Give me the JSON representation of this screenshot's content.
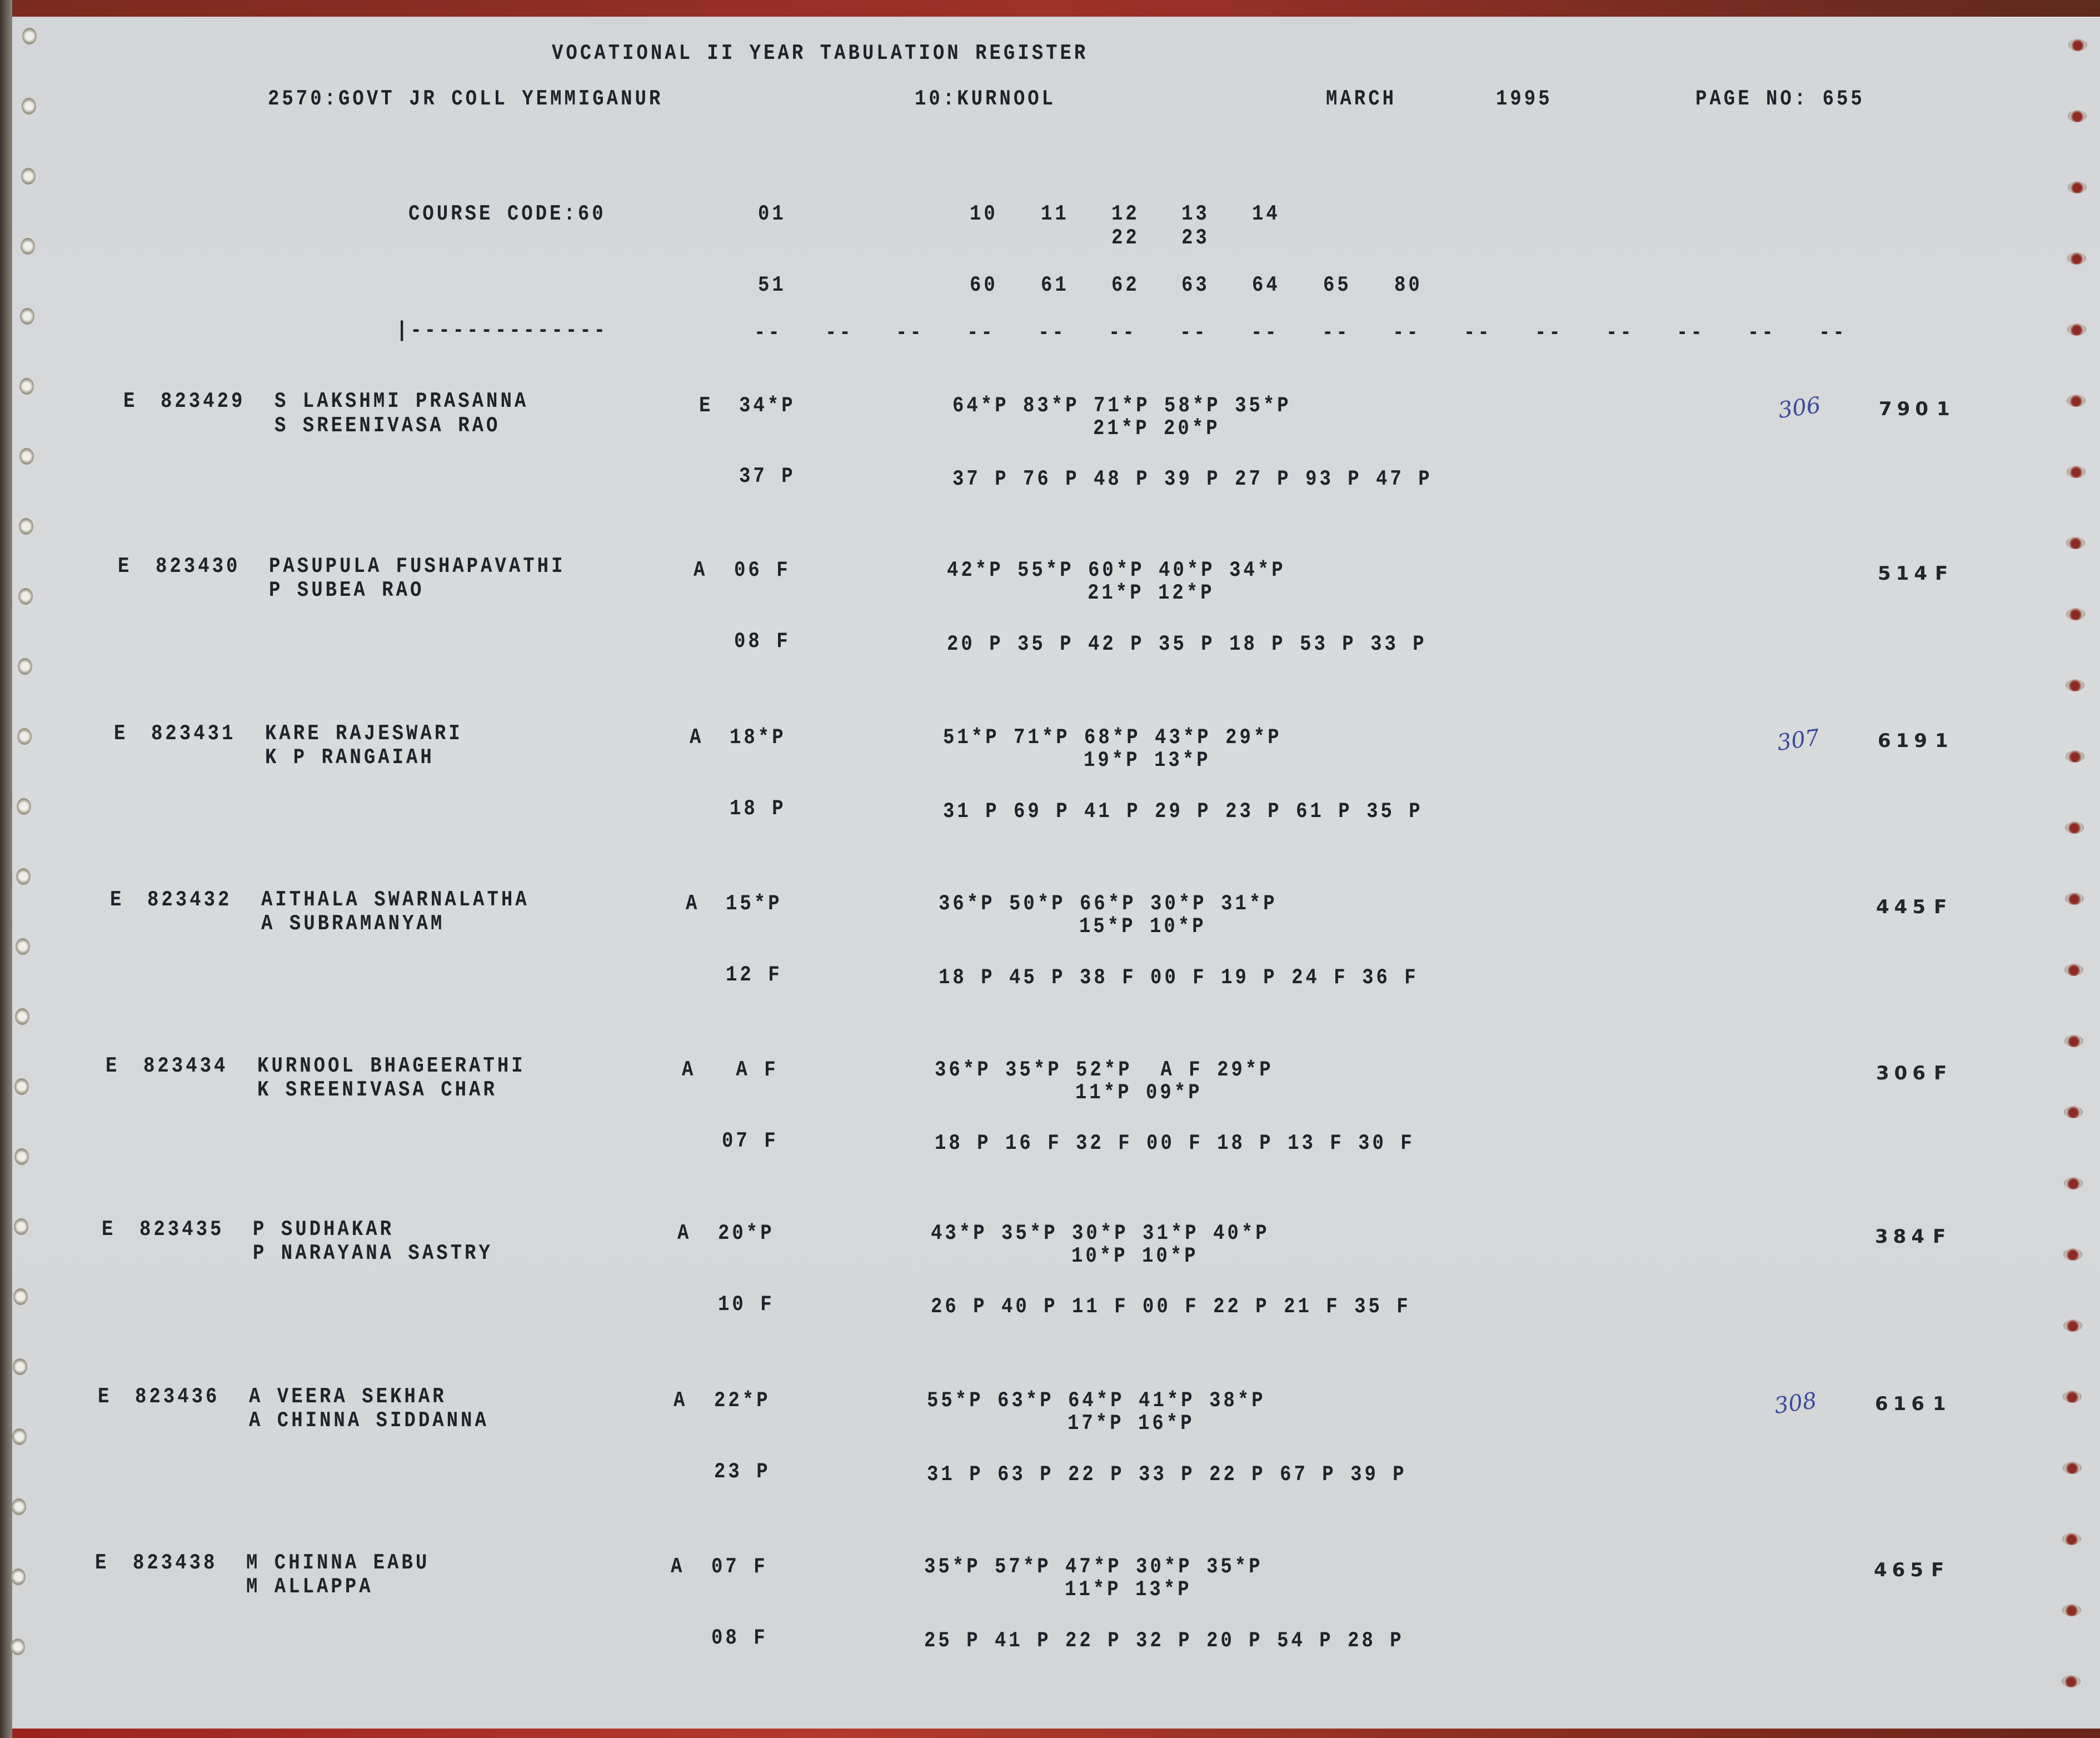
{
  "header": {
    "title": "VOCATIONAL II YEAR TABULATION REGISTER",
    "college": "2570:GOVT JR COLL YEMMIGANUR",
    "district": "10:KURNOOL",
    "month": "MARCH",
    "year": "1995",
    "page_no": "PAGE NO: 655"
  },
  "columns": {
    "course_code": "COURSE CODE:60",
    "row1": [
      "01",
      "10",
      "11",
      "12",
      "13",
      "14"
    ],
    "row2": [
      "22",
      "23"
    ],
    "row3": [
      "51",
      "60",
      "61",
      "62",
      "63",
      "64",
      "65",
      "80"
    ],
    "name_rule": "|--------------",
    "dash": "--"
  },
  "records": [
    {
      "type": "E",
      "roll": "823429",
      "name": "S LAKSHMI PRASANNA",
      "parent": "S SREENIVASA RAO",
      "group": "E",
      "first": "34*P",
      "marks1": "64*P 83*P 71*P 58*P 35*P",
      "marks2": "21*P 20*P",
      "first2": "37 P",
      "marks3": "37 P 76 P 48 P 39 P 27 P 93 P 47 P",
      "total": "790",
      "result": "1",
      "note": "306"
    },
    {
      "type": "E",
      "roll": "823430",
      "name": "PASUPULA FUSHAPAVATHI",
      "parent": "P SUBEA RAO",
      "group": "A",
      "first": "06 F",
      "marks1": "42*P 55*P 60*P 40*P 34*P",
      "marks2": "21*P 12*P",
      "first2": "08 F",
      "marks3": "20 P 35 P 42 P 35 P 18 P 53 P 33 P",
      "total": "514",
      "result": "F",
      "note": ""
    },
    {
      "type": "E",
      "roll": "823431",
      "name": "KARE RAJESWARI",
      "parent": "K P RANGAIAH",
      "group": "A",
      "first": "18*P",
      "marks1": "51*P 71*P 68*P 43*P 29*P",
      "marks2": "19*P 13*P",
      "first2": "18 P",
      "marks3": "31 P 69 P 41 P 29 P 23 P 61 P 35 P",
      "total": "619",
      "result": "1",
      "note": "307"
    },
    {
      "type": "E",
      "roll": "823432",
      "name": "AITHALA SWARNALATHA",
      "parent": "A SUBRAMANYAM",
      "group": "A",
      "first": "15*P",
      "marks1": "36*P 50*P 66*P 30*P 31*P",
      "marks2": "15*P 10*P",
      "first2": "12 F",
      "marks3": "18 P 45 P 38 F 00 F 19 P 24 F 36 F",
      "total": "445",
      "result": "F",
      "note": ""
    },
    {
      "type": "E",
      "roll": "823434",
      "name": "KURNOOL BHAGEERATHI",
      "parent": "K SREENIVASA CHAR",
      "group": "A",
      "first": " A F",
      "marks1": "36*P 35*P 52*P  A F 29*P",
      "marks2": "11*P 09*P",
      "first2": "07 F",
      "marks3": "18 P 16 F 32 F 00 F 18 P 13 F 30 F",
      "total": "306",
      "result": "F",
      "note": ""
    },
    {
      "type": "E",
      "roll": "823435",
      "name": "P SUDHAKAR",
      "parent": "P NARAYANA SASTRY",
      "group": "A",
      "first": "20*P",
      "marks1": "43*P 35*P 30*P 31*P 40*P",
      "marks2": "10*P 10*P",
      "first2": "10 F",
      "marks3": "26 P 40 P 11 F 00 F 22 P 21 F 35 F",
      "total": "384",
      "result": "F",
      "note": ""
    },
    {
      "type": "E",
      "roll": "823436",
      "name": "A VEERA SEKHAR",
      "parent": "A CHINNA SIDDANNA",
      "group": "A",
      "first": "22*P",
      "marks1": "55*P 63*P 64*P 41*P 38*P",
      "marks2": "17*P 16*P",
      "first2": "23 P",
      "marks3": "31 P 63 P 22 P 33 P 22 P 67 P 39 P",
      "total": "616",
      "result": "1",
      "note": "308"
    },
    {
      "type": "E",
      "roll": "823438",
      "name": "M CHINNA EABU",
      "parent": "M ALLAPPA",
      "group": "A",
      "first": "07 F",
      "marks1": "35*P 57*P 47*P 30*P 35*P",
      "marks2": "11*P 13*P",
      "first2": "08 F",
      "marks3": "25 P 41 P 22 P 32 P 20 P 54 P 28 P",
      "total": "465",
      "result": "F",
      "note": ""
    }
  ],
  "colors": {
    "ink": "#1f2229",
    "paper": "#d4d6d8",
    "handwriting": "#3b4a9c"
  }
}
